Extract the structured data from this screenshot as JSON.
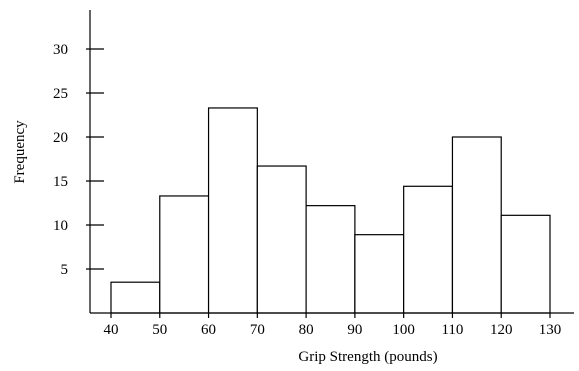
{
  "chart_data": {
    "type": "bar",
    "xlabel": "Grip Strength (pounds)",
    "ylabel": "Frequency",
    "bin_edges": [
      40,
      50,
      60,
      70,
      80,
      90,
      100,
      110,
      120,
      130
    ],
    "values": [
      3.5,
      13.3,
      23.3,
      16.7,
      12.2,
      8.9,
      14.4,
      20.0,
      11.1
    ],
    "xlim": [
      40,
      130
    ],
    "ylim": [
      0,
      30
    ],
    "x_ticks": [
      "40",
      "50",
      "60",
      "70",
      "80",
      "90",
      "100",
      "110",
      "120",
      "130"
    ],
    "y_ticks": [
      "5",
      "10",
      "15",
      "20",
      "25",
      "30"
    ],
    "grid": false,
    "bar_fill": "#ffffff",
    "bar_stroke": "#000000"
  }
}
